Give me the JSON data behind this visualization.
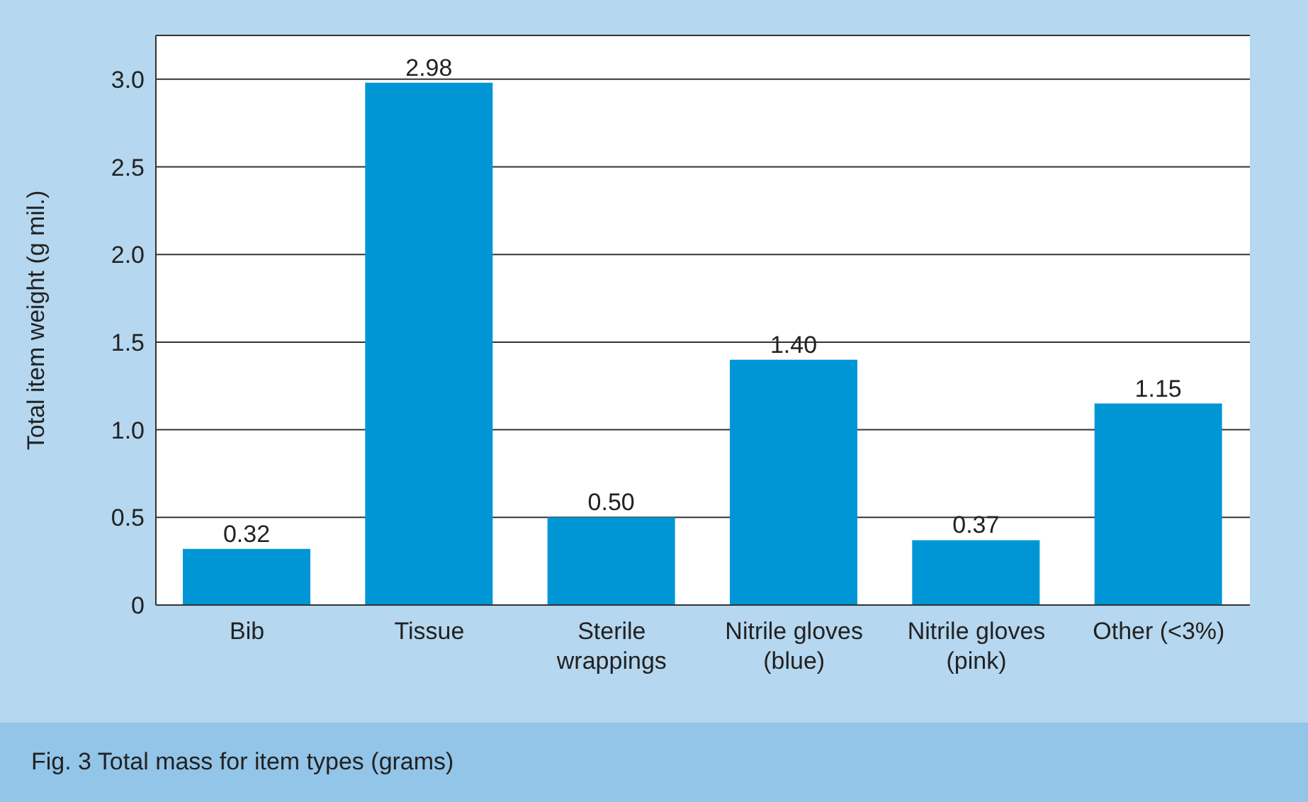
{
  "chart_data": {
    "type": "bar",
    "ylabel": "Total item weight (g mil.)",
    "categories": [
      "Bib",
      "Tissue",
      "Sterile wrappings",
      "Nitrile gloves (blue)",
      "Nitrile gloves (pink)",
      "Other (<3%)"
    ],
    "values": [
      0.32,
      2.98,
      0.5,
      1.4,
      0.37,
      1.15
    ],
    "value_labels": [
      "0.32",
      "2.98",
      "0.50",
      "1.40",
      "0.37",
      "1.15"
    ],
    "color": "#0096d6",
    "ylim": [
      0,
      3.25
    ],
    "yticks": [
      0,
      {
        "value": 0.5,
        "label": "0.5"
      },
      {
        "value": 1,
        "label": "1.0"
      },
      {
        "value": 1.5,
        "label": "1.5"
      },
      {
        "value": 2,
        "label": "2.0"
      },
      {
        "value": 2.5,
        "label": "2.5"
      },
      {
        "value": 3,
        "label": "3.0"
      }
    ],
    "grid": "y",
    "annotations": [
      "Fig. 3  Total mass for item types (grams)"
    ]
  }
}
